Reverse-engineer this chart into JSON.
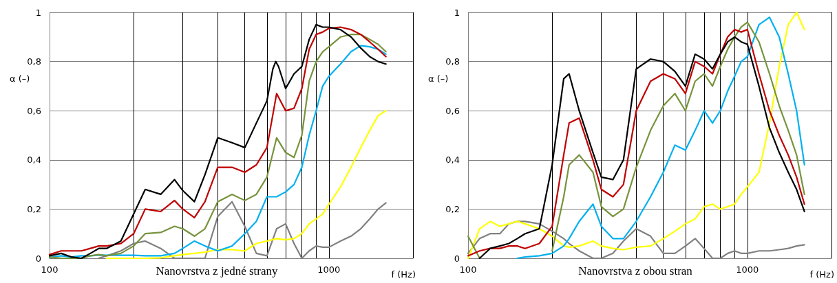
{
  "chart_data": [
    {
      "type": "line",
      "title": "Nanovrstva z jedné strany",
      "xlabel": "f (Hz)",
      "ylabel": "α (–)",
      "log": "x",
      "grid": true,
      "marker": "none",
      "line_style": "solid",
      "xlim": [
        100,
        2000
      ],
      "xticks": [
        {
          "value": 100,
          "label": "100"
        },
        {
          "value": 200,
          "label": null
        },
        {
          "value": 300,
          "label": null
        },
        {
          "value": 400,
          "label": null
        },
        {
          "value": 500,
          "label": null
        },
        {
          "value": 600,
          "label": null
        },
        {
          "value": 700,
          "label": null
        },
        {
          "value": 800,
          "label": null
        },
        {
          "value": 900,
          "label": null
        },
        {
          "value": 1000,
          "label": "1000"
        },
        {
          "value": 2000,
          "label": null
        }
      ],
      "ylim": [
        0,
        1
      ],
      "yticks": [
        {
          "value": 0,
          "label": "0"
        },
        {
          "value": 0.2,
          "label": "0,2"
        },
        {
          "value": 0.4,
          "label": "0,4"
        },
        {
          "value": 0.6,
          "label": "0,6"
        },
        {
          "value": 0.8,
          "label": "0,8"
        },
        {
          "value": 1,
          "label": "1"
        }
      ],
      "x": [
        100,
        110,
        120,
        130,
        140,
        150,
        160,
        180,
        200,
        220,
        250,
        280,
        300,
        330,
        360,
        400,
        450,
        500,
        550,
        600,
        650,
        700,
        750,
        800,
        850,
        900,
        950,
        1000,
        1100,
        1200,
        1300,
        1400,
        1500,
        1600
      ],
      "series": [
        {
          "color": "#808080",
          "values": [
            null,
            null,
            null,
            null,
            null,
            0,
            0.01,
            0.03,
            0.06,
            0.07,
            0.04,
            0,
            0,
            0,
            0,
            0.17,
            0.23,
            0.13,
            0.02,
            0.01,
            0.12,
            0.14,
            0.06,
            0,
            0.03,
            0.05,
            0.045,
            0.045,
            0.07,
            0.09,
            0.12,
            0.16,
            0.2,
            0.225
          ]
        },
        {
          "color": "#ffff00",
          "values": [
            null,
            null,
            null,
            null,
            null,
            null,
            0,
            0,
            0,
            0,
            0.002,
            0.01,
            0.015,
            0.02,
            0.025,
            0.035,
            0.035,
            0.03,
            0.06,
            0.07,
            0.08,
            0.075,
            0.08,
            0.1,
            0.14,
            0.16,
            0.18,
            0.22,
            0.29,
            0.37,
            0.45,
            0.52,
            0.58,
            0.6
          ]
        },
        {
          "color": "#00b0f0",
          "values": [
            0.003,
            0.01,
            0.005,
            0.01,
            0.01,
            0.013,
            0.012,
            0.012,
            0.012,
            0.01,
            0.01,
            0.02,
            0.04,
            0.07,
            0.05,
            0.03,
            0.05,
            0.1,
            0.15,
            0.25,
            0.25,
            0.27,
            0.3,
            0.37,
            0.5,
            0.6,
            0.7,
            0.74,
            0.79,
            0.84,
            0.865,
            0.86,
            0.85,
            0.83
          ]
        },
        {
          "color": "#77933c",
          "values": [
            0.005,
            0,
            0,
            0,
            0.01,
            0.015,
            0.01,
            0.02,
            0.05,
            0.1,
            0.105,
            0.13,
            0.12,
            0.09,
            0.12,
            0.23,
            0.26,
            0.235,
            0.26,
            0.33,
            0.49,
            0.43,
            0.41,
            0.5,
            0.72,
            0.8,
            0.84,
            0.86,
            0.9,
            0.91,
            0.91,
            0.89,
            0.87,
            0.84
          ]
        },
        {
          "color": "#c00000",
          "values": [
            0.015,
            0.03,
            0.03,
            0.03,
            0.04,
            0.05,
            0.05,
            0.06,
            0.1,
            0.2,
            0.19,
            0.235,
            0.2,
            0.165,
            0.23,
            0.37,
            0.37,
            0.35,
            0.38,
            0.45,
            0.67,
            0.6,
            0.61,
            0.69,
            0.85,
            0.91,
            0.92,
            0.935,
            0.94,
            0.93,
            0.91,
            0.88,
            0.85,
            0.82
          ]
        },
        {
          "color": "#000000",
          "x": [
            100,
            110,
            120,
            130,
            140,
            150,
            160,
            180,
            200,
            220,
            250,
            280,
            300,
            330,
            360,
            400,
            450,
            500,
            550,
            600,
            630,
            645,
            660,
            700,
            750,
            800,
            850,
            900,
            950,
            1000,
            1100,
            1200,
            1300,
            1400,
            1500,
            1600
          ],
          "values": [
            0.01,
            0.02,
            0.005,
            0,
            0.02,
            0.04,
            0.04,
            0.07,
            0.18,
            0.28,
            0.26,
            0.32,
            0.275,
            0.23,
            0.34,
            0.49,
            0.47,
            0.45,
            0.55,
            0.64,
            0.77,
            0.8,
            0.78,
            0.69,
            0.75,
            0.78,
            0.89,
            0.95,
            0.94,
            0.94,
            0.93,
            0.9,
            0.855,
            0.82,
            0.8,
            0.79
          ]
        }
      ]
    },
    {
      "type": "line",
      "title": "Nanovrstva z obou stran",
      "xlabel": "f (Hz)",
      "ylabel": "α (–)",
      "log": "x",
      "grid": true,
      "marker": "none",
      "line_style": "solid",
      "xlim": [
        100,
        2000
      ],
      "xticks": [
        {
          "value": 100,
          "label": "100"
        },
        {
          "value": 200,
          "label": null
        },
        {
          "value": 300,
          "label": null
        },
        {
          "value": 400,
          "label": null
        },
        {
          "value": 500,
          "label": null
        },
        {
          "value": 600,
          "label": null
        },
        {
          "value": 700,
          "label": null
        },
        {
          "value": 800,
          "label": null
        },
        {
          "value": 900,
          "label": null
        },
        {
          "value": 1000,
          "label": "1000"
        },
        {
          "value": 2000,
          "label": null
        }
      ],
      "ylim": [
        0,
        1
      ],
      "yticks": [
        {
          "value": 0,
          "label": "0"
        },
        {
          "value": 0.2,
          "label": "0,2"
        },
        {
          "value": 0.4,
          "label": "0,4"
        },
        {
          "value": 0.6,
          "label": "0,6"
        },
        {
          "value": 0.8,
          "label": "0,8"
        },
        {
          "value": 1,
          "label": "1"
        }
      ],
      "x": [
        100,
        110,
        120,
        130,
        140,
        150,
        160,
        180,
        200,
        220,
        230,
        250,
        280,
        300,
        330,
        360,
        400,
        450,
        500,
        550,
        600,
        650,
        700,
        750,
        800,
        850,
        900,
        950,
        1000,
        1100,
        1200,
        1300,
        1400,
        1500,
        1600
      ],
      "series": [
        {
          "color": "#808080",
          "values": [
            0.02,
            0.08,
            0.1,
            0.1,
            0.14,
            0.15,
            0.15,
            0.14,
            0.11,
            0.08,
            0.06,
            0.03,
            0,
            0,
            0.02,
            0.07,
            0.12,
            0.09,
            0.02,
            0.02,
            0.05,
            0.08,
            0.04,
            0,
            0,
            0.02,
            0.03,
            0.02,
            0.02,
            0.03,
            0.03,
            0.035,
            0.04,
            0.05,
            0.055
          ]
        },
        {
          "color": "#ffff00",
          "values": [
            0,
            0.12,
            0.15,
            0.13,
            0.14,
            0.15,
            0.14,
            0.12,
            0.09,
            0.05,
            0.045,
            0.05,
            0.07,
            0.05,
            0.04,
            0.035,
            0.045,
            0.05,
            0.08,
            0.11,
            0.14,
            0.16,
            0.21,
            0.22,
            0.2,
            0.21,
            0.22,
            0.26,
            0.29,
            0.35,
            0.55,
            0.78,
            0.95,
            1,
            0.93
          ]
        },
        {
          "color": "#00b0f0",
          "values": [
            null,
            null,
            null,
            null,
            null,
            0,
            0.005,
            0.01,
            0.02,
            0.05,
            0.08,
            0.15,
            0.22,
            0.13,
            0.08,
            0.08,
            0.15,
            0.25,
            0.35,
            0.46,
            0.44,
            0.52,
            0.6,
            0.55,
            0.6,
            0.68,
            0.74,
            0.8,
            0.82,
            0.95,
            0.98,
            0.9,
            0.75,
            0.6,
            0.38
          ]
        },
        {
          "color": "#77933c",
          "values": [
            0.09,
            0,
            null,
            null,
            null,
            null,
            null,
            null,
            0.03,
            0.25,
            0.38,
            0.42,
            0.35,
            0.21,
            0.17,
            0.2,
            0.37,
            0.52,
            0.62,
            0.67,
            0.6,
            0.72,
            0.75,
            0.7,
            0.78,
            0.85,
            0.9,
            0.94,
            0.96,
            0.88,
            0.75,
            0.62,
            0.52,
            0.42,
            0.26
          ]
        },
        {
          "color": "#c00000",
          "values": [
            0.01,
            0.03,
            0.04,
            0.04,
            0.05,
            0.05,
            0.04,
            0.06,
            0.13,
            0.42,
            0.55,
            0.57,
            0.4,
            0.28,
            0.25,
            0.3,
            0.6,
            0.72,
            0.75,
            0.73,
            0.67,
            0.8,
            0.78,
            0.75,
            0.83,
            0.9,
            0.93,
            0.92,
            0.93,
            0.75,
            0.6,
            0.5,
            0.42,
            0.33,
            0.22
          ]
        },
        {
          "color": "#000000",
          "values": [
            null,
            0,
            0.04,
            0.05,
            0.06,
            0.08,
            0.1,
            0.12,
            0.38,
            0.73,
            0.75,
            0.6,
            0.43,
            0.33,
            0.32,
            0.4,
            0.77,
            0.81,
            0.8,
            0.76,
            0.7,
            0.83,
            0.81,
            0.77,
            0.83,
            0.88,
            0.9,
            0.88,
            0.87,
            0.7,
            0.53,
            0.43,
            0.35,
            0.28,
            0.19
          ]
        }
      ]
    }
  ]
}
